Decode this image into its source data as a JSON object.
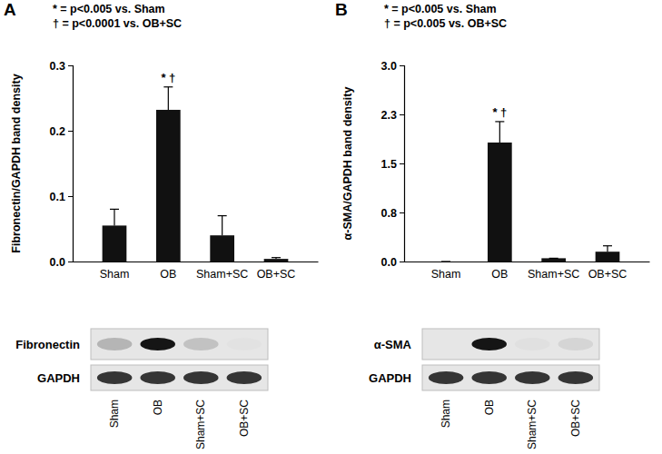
{
  "chart_data": [
    {
      "type": "bar",
      "panel": "A",
      "annotations": [
        "* = p<0.005 vs. Sham",
        "† = p<0.0001 vs. OB+SC"
      ],
      "y_label": "Fibronectin/GAPDH band density",
      "categories": [
        "Sham",
        "OB",
        "Sham+SC",
        "OB+SC"
      ],
      "values": [
        0.055,
        0.232,
        0.04,
        0.004
      ],
      "errors": [
        0.025,
        0.035,
        0.03,
        0.002
      ],
      "significance": [
        null,
        "* †",
        null,
        null
      ],
      "color": "#111111",
      "ylim": [
        0,
        0.3
      ],
      "yticks": [
        {
          "value": 0,
          "label": "0.0"
        },
        0.1,
        0.2,
        0.3
      ],
      "blot": {
        "rows": [
          "Fibronectin",
          "GAPDH"
        ],
        "lanes": [
          "Sham",
          "OB",
          "Sham+SC",
          "OB+SC"
        ]
      }
    },
    {
      "type": "bar",
      "panel": "B",
      "annotations": [
        "* = p<0.005 vs. Sham",
        "† = p<0.005 vs. OB+SC"
      ],
      "y_label": "α-SMA/GAPDH band density",
      "categories": [
        "Sham",
        "OB",
        "Sham+SC",
        "OB+SC"
      ],
      "values": [
        0,
        1.82,
        0.05,
        0.15
      ],
      "errors": [
        0,
        0.32,
        0,
        0.09
      ],
      "significance": [
        null,
        "* †",
        null,
        null
      ],
      "color": "#111111",
      "ylim": [
        0,
        3.0
      ],
      "yticks": [
        {
          "value": 0,
          "label": "0.0"
        },
        {
          "value": 0.75,
          "label": "0.8"
        },
        1.5,
        {
          "value": 2.25,
          "label": "2.3"
        },
        {
          "value": 3.0,
          "label": "3.0"
        }
      ],
      "blot": {
        "rows": [
          "α-SMA",
          "GAPDH"
        ],
        "lanes": [
          "Sham",
          "OB",
          "Sham+SC",
          "OB+SC"
        ]
      }
    }
  ]
}
